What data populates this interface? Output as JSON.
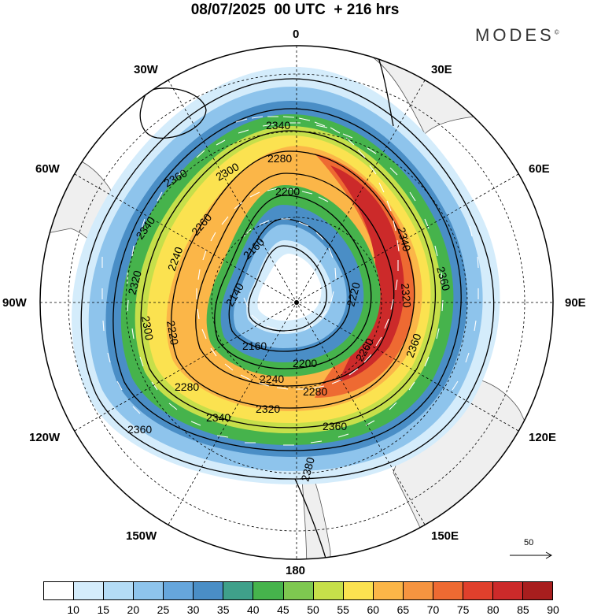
{
  "header": {
    "title": "08/07/2025  00 UTC  + 216 hrs",
    "brand": "MODES",
    "brand_mark": "©"
  },
  "longitude_labels": {
    "top": "0",
    "bottom": "180",
    "left": "90W",
    "right": "90E",
    "upper_left": "30W",
    "upper_right": "30E",
    "mid_left_upper": "60W",
    "mid_right_upper": "60E",
    "mid_left_lower": "120W",
    "mid_right_lower": "120E",
    "lower_left": "150W",
    "lower_right": "150E"
  },
  "contours": {
    "values": [
      "2140",
      "2160",
      "2200",
      "2220",
      "2240",
      "2260",
      "2280",
      "2300",
      "2320",
      "2340",
      "2360",
      "2380"
    ]
  },
  "colorbar": {
    "ticks": [
      "10",
      "15",
      "20",
      "25",
      "30",
      "35",
      "40",
      "45",
      "50",
      "55",
      "60",
      "65",
      "70",
      "75",
      "80",
      "85",
      "90"
    ],
    "colors": [
      "#ffffff",
      "#d4ecfb",
      "#b4dcf6",
      "#8ec4ec",
      "#66a6dc",
      "#4a8ec6",
      "#3fa08a",
      "#46b34c",
      "#7ec850",
      "#c6df4a",
      "#fbe250",
      "#fbb648",
      "#f69440",
      "#ee6a32",
      "#e0402c",
      "#cc2a2a",
      "#a81e1e"
    ]
  },
  "reference_vector": {
    "value": "50"
  }
}
